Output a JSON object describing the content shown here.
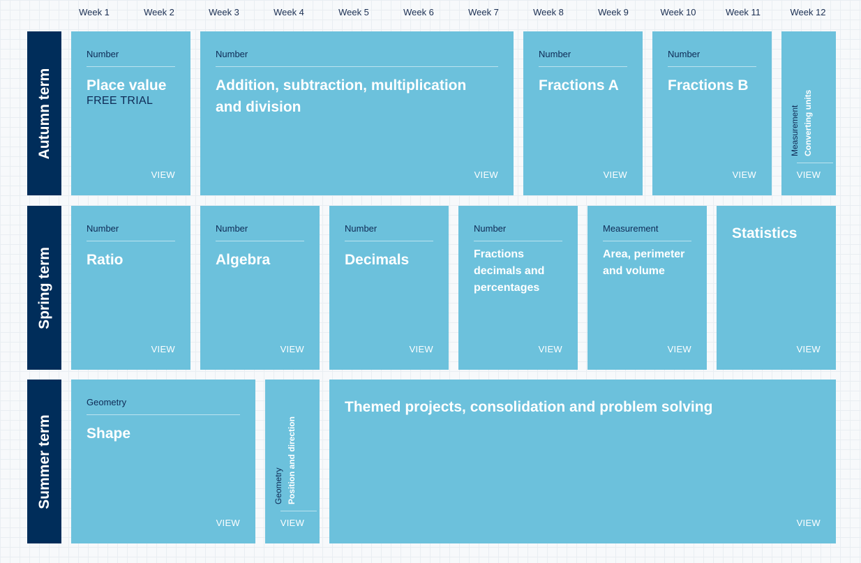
{
  "weeks": [
    "Week 1",
    "Week 2",
    "Week 3",
    "Week 4",
    "Week 5",
    "Week 6",
    "Week 7",
    "Week 8",
    "Week 9",
    "Week 10",
    "Week 11",
    "Week 12"
  ],
  "terms": {
    "autumn": "Autumn term",
    "spring": "Spring term",
    "summer": "Summer term"
  },
  "view_label": "VIEW",
  "autumn": {
    "place_value": {
      "category": "Number",
      "title": "Place value",
      "badge": "FREE TRIAL"
    },
    "four_operations": {
      "category": "Number",
      "title": "Addition, subtraction, multiplication and division"
    },
    "fractions_a": {
      "category": "Number",
      "title": "Fractions A"
    },
    "fractions_b": {
      "category": "Number",
      "title": "Fractions B"
    },
    "converting_units": {
      "category": "Measurement",
      "title": "Converting units"
    }
  },
  "spring": {
    "ratio": {
      "category": "Number",
      "title": "Ratio"
    },
    "algebra": {
      "category": "Number",
      "title": "Algebra"
    },
    "decimals": {
      "category": "Number",
      "title": "Decimals"
    },
    "fdp": {
      "category": "Number",
      "title": "Fractions decimals and percentages"
    },
    "area": {
      "category": "Measurement",
      "title": "Area, perimeter and volume"
    },
    "statistics": {
      "title": "Statistics"
    }
  },
  "summer": {
    "shape": {
      "category": "Geometry",
      "title": "Shape"
    },
    "position": {
      "category": "Geometry",
      "title": "Position and direction"
    },
    "themed": {
      "title": "Themed projects, consolidation and problem solving"
    }
  },
  "colors": {
    "card": "#6cc1dc",
    "term": "#002d5a",
    "text_dark": "#0e2a55"
  }
}
